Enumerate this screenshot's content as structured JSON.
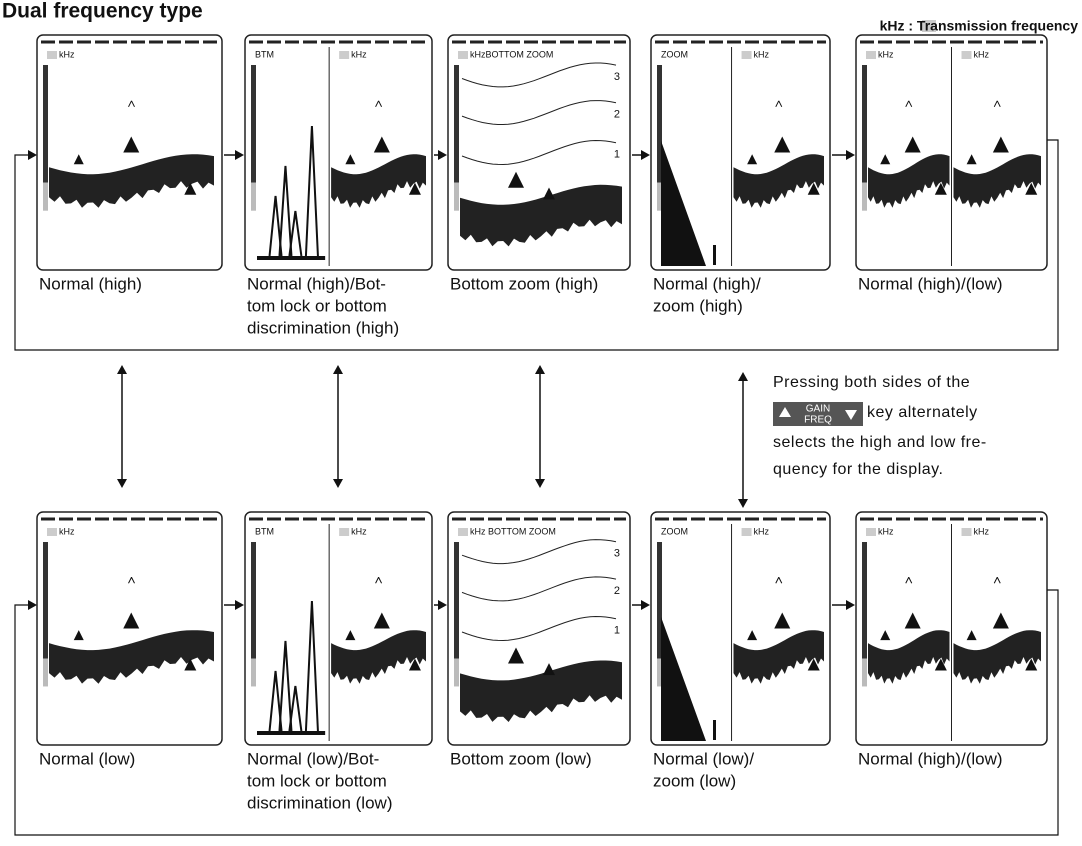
{
  "title": "Dual frequency type",
  "legend": "kHz : Transmission frequency",
  "rows": [
    {
      "panels": [
        {
          "screen_labels": [
            "kHz"
          ],
          "caption": [
            "Normal (high)"
          ]
        },
        {
          "screen_labels": [
            "BTM",
            "kHz"
          ],
          "caption": [
            "Normal (high)/Bot-",
            "tom lock or bottom",
            "discrimination (high)"
          ]
        },
        {
          "screen_labels": [
            "kHzBOTTOM ZOOM"
          ],
          "scale": [
            3,
            2,
            1
          ],
          "caption": [
            "Bottom zoom (high)"
          ]
        },
        {
          "screen_labels": [
            "ZOOM",
            "kHz"
          ],
          "caption": [
            "Normal  (high)/",
            "zoom (high)"
          ]
        },
        {
          "screen_labels": [
            "kHz",
            "kHz"
          ],
          "caption": [
            "Normal (high)/(low)"
          ]
        }
      ]
    },
    {
      "panels": [
        {
          "screen_labels": [
            "kHz"
          ],
          "caption": [
            "Normal (low)"
          ]
        },
        {
          "screen_labels": [
            "BTM",
            "kHz"
          ],
          "caption": [
            "Normal (low)/Bot-",
            "tom lock or bottom",
            "discrimination (low)"
          ]
        },
        {
          "screen_labels": [
            "kHz BOTTOM ZOOM"
          ],
          "scale": [
            3,
            2,
            1
          ],
          "caption": [
            "Bottom zoom (low)"
          ]
        },
        {
          "screen_labels": [
            "ZOOM",
            "kHz"
          ],
          "caption": [
            "Normal (low)/",
            "zoom (low)"
          ]
        },
        {
          "screen_labels": [
            "kHz",
            "kHz"
          ],
          "caption": [
            "Normal (high)/(low)"
          ]
        }
      ]
    }
  ],
  "note": {
    "lines": [
      "Pressing both sides of the",
      "key alternately",
      "selects the high and low fre-",
      "quency for the display."
    ],
    "key": {
      "top": "GAIN",
      "bottom": "FREQ"
    }
  }
}
